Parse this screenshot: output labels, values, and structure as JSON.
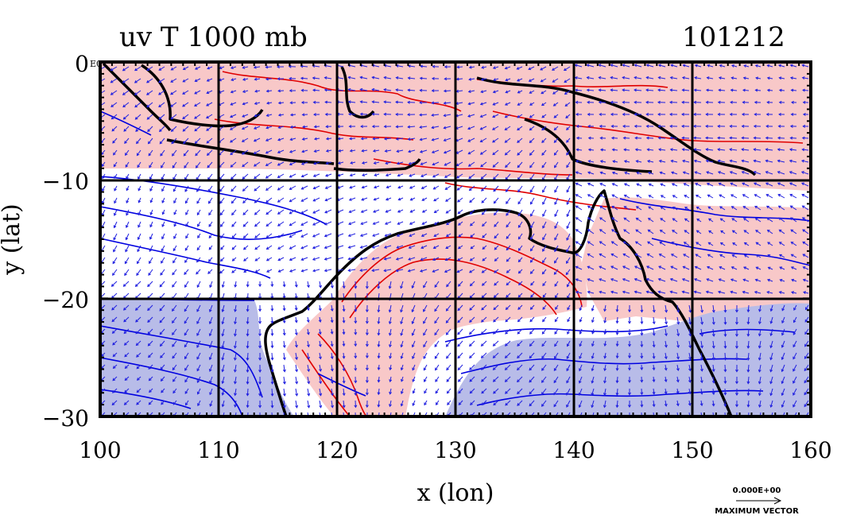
{
  "header": {
    "title": "uv T 1000 mb",
    "date": "101212"
  },
  "axes": {
    "x_label": "x (lon)",
    "y_label": "y (lat)",
    "x_ticks": [
      "100",
      "110",
      "120",
      "130",
      "140",
      "150",
      "160"
    ],
    "y_ticks": [
      "0",
      "−10",
      "−20",
      "−30"
    ],
    "corner_label": "E0"
  },
  "legend": {
    "vector_scale": "0.000E+00",
    "vector_caption": "MAXIMUM VECTOR"
  },
  "colors": {
    "warm_fill": "#f8c8c8",
    "cool_fill": "#b8bce8",
    "warm_contour": "#e00000",
    "cool_contour": "#0000e0",
    "vectors": "#2020e0",
    "coast": "#000000",
    "grid": "#000000"
  },
  "map_extent": {
    "lon_range": [
      100,
      160
    ],
    "lat_range": [
      -30,
      0
    ],
    "grid_lon": [
      110,
      120,
      130,
      140,
      150
    ],
    "grid_lat": [
      -10,
      -20
    ]
  }
}
